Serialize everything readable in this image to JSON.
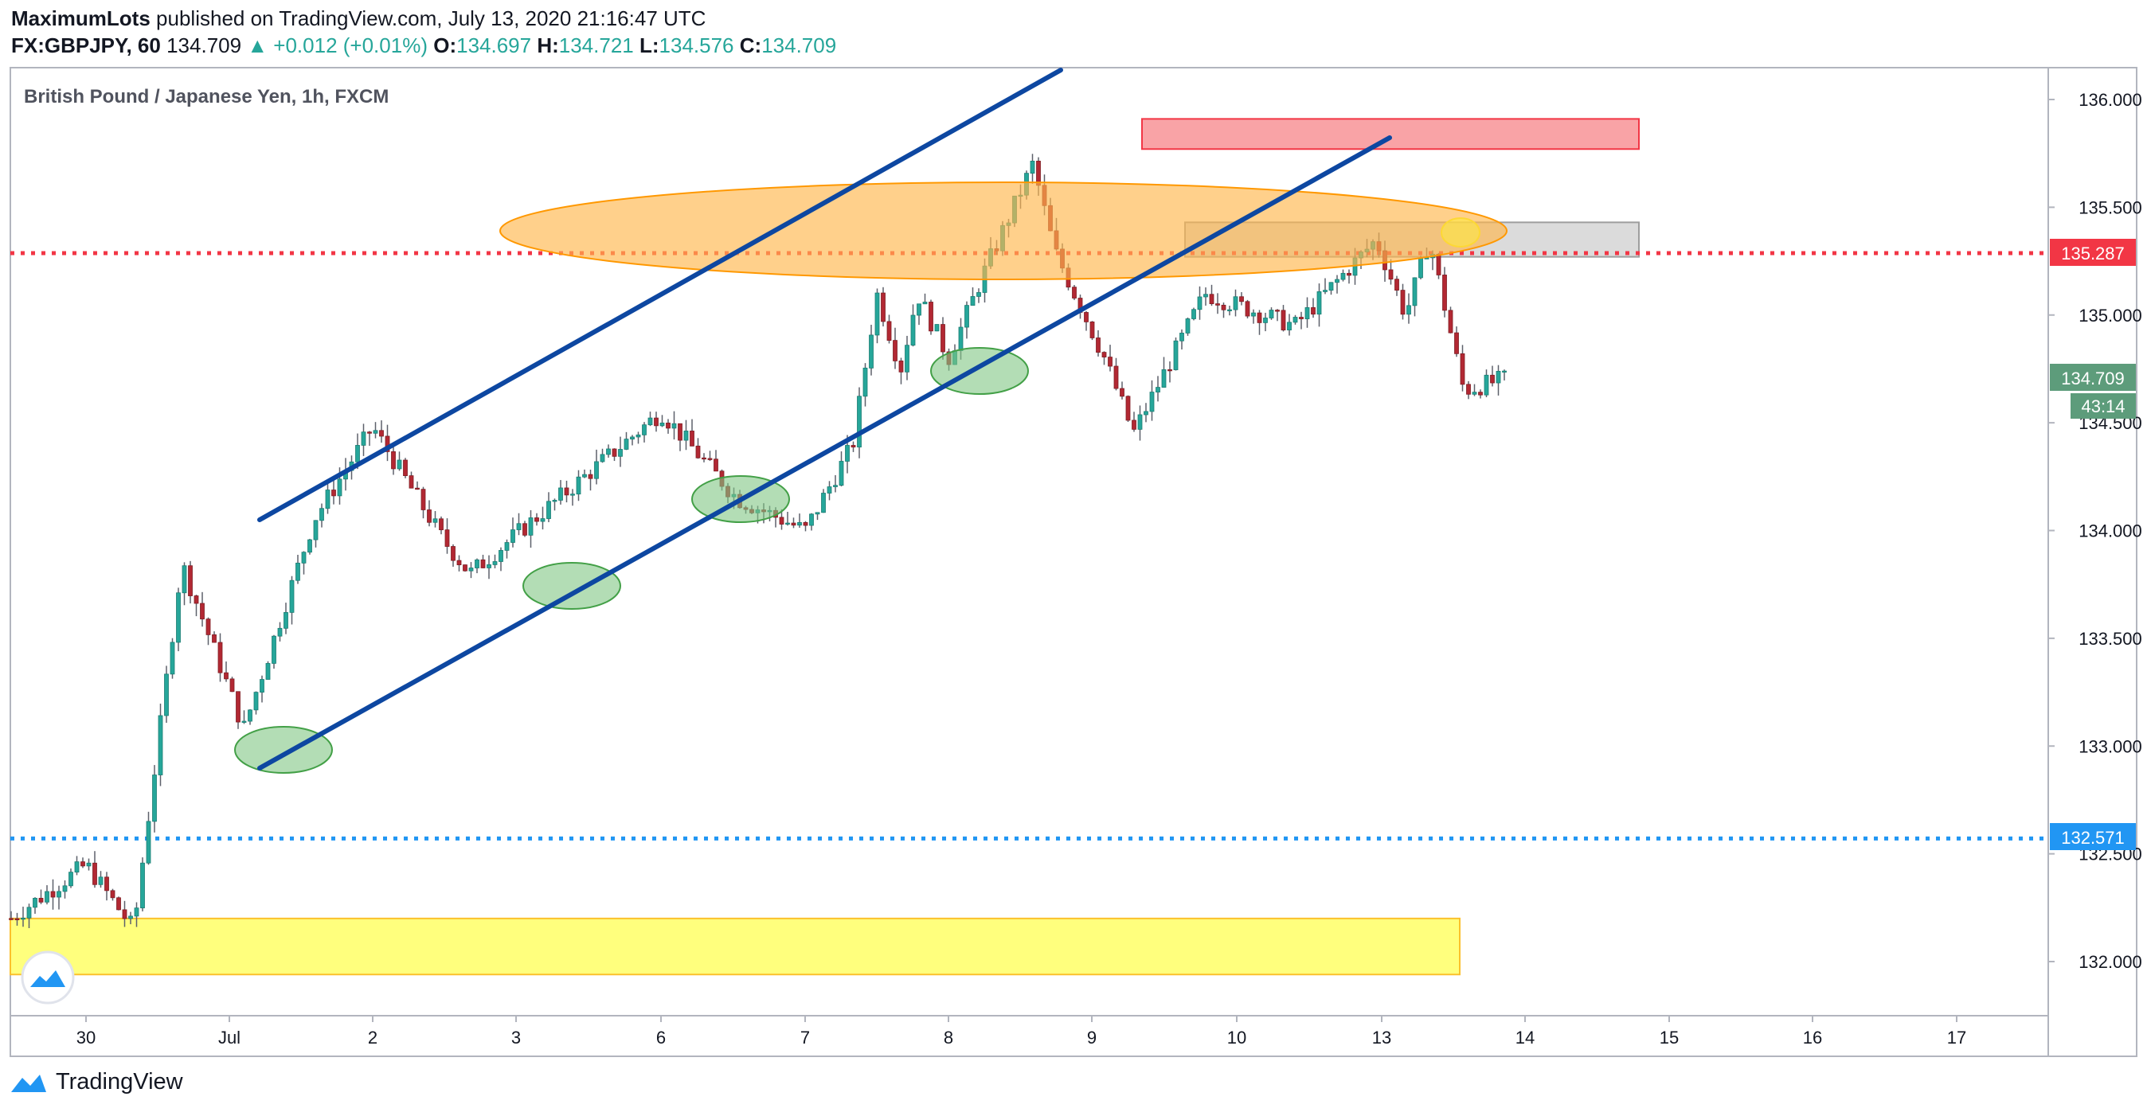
{
  "header": {
    "publisher": "MaximumLots",
    "published_text": "published on TradingView.com, July 13, 2020 21:16:47 UTC",
    "symbol": "FX:GBPJPY, 60",
    "last": "134.709",
    "change": "+0.012 (+0.01%)",
    "o_label": "O:",
    "o": "134.697",
    "h_label": "H:",
    "h": "134.721",
    "l_label": "L:",
    "l": "134.576",
    "c_label": "C:",
    "c": "134.709"
  },
  "footer": {
    "brand": "TradingView"
  },
  "colors": {
    "up": "#26a69a",
    "down": "#b22833",
    "wick": "#5d606b",
    "channel": "#0d47a1",
    "resistance_line": "#f23645",
    "support_line": "#2196f3",
    "supply_zone": "#f77c80",
    "demand_zone": "#ffff66",
    "ellipse": "#ffb74d",
    "touch": "#81c784"
  },
  "chart_data": {
    "type": "candlestick",
    "title": "British Pound / Japanese Yen, 1h, FXCM",
    "x_ticks": [
      "30",
      "Jul",
      "2",
      "3",
      "6",
      "7",
      "8",
      "9",
      "10",
      "13",
      "14",
      "15",
      "16",
      "17"
    ],
    "y_ticks": [
      "136.000",
      "135.500",
      "135.000",
      "134.500",
      "134.000",
      "133.500",
      "133.000",
      "132.500",
      "132.000"
    ],
    "ylim": [
      131.85,
      136.25
    ],
    "price_labels": {
      "resistance": "135.287",
      "last": "134.709",
      "countdown": "43:14",
      "support": "132.571"
    },
    "horizontal_levels": [
      135.287,
      132.571
    ],
    "zones": [
      {
        "name": "supply",
        "low": 135.77,
        "high": 135.91
      },
      {
        "name": "resistance-box",
        "low": 135.27,
        "high": 135.43
      },
      {
        "name": "demand",
        "low": 131.94,
        "high": 132.2
      }
    ],
    "anchors": [
      {
        "name": "Jun 29 14h",
        "price": 132.2
      },
      {
        "name": "Jun 30 06h",
        "price": 132.45
      },
      {
        "name": "Jun 30 16h",
        "price": 132.15
      },
      {
        "name": "Jul 1 02h",
        "price": 133.85
      },
      {
        "name": "Jul 1 08h",
        "price": 133.08
      },
      {
        "name": "Jul 1 20h",
        "price": 134.05
      },
      {
        "name": "Jul 2 20h",
        "price": 134.48
      },
      {
        "name": "Jul 3 08h",
        "price": 133.95
      },
      {
        "name": "Jul 3 14h",
        "price": 133.8
      },
      {
        "name": "Jul 6 06h",
        "price": 134.55
      },
      {
        "name": "Jul 6 20h",
        "price": 134.15
      },
      {
        "name": "Jul 7 10h",
        "price": 134.0
      },
      {
        "name": "Jul 7 20h",
        "price": 134.4
      },
      {
        "name": "Jul 8 02h",
        "price": 135.1
      },
      {
        "name": "Jul 8 08h",
        "price": 134.75
      },
      {
        "name": "Jul 8 12h",
        "price": 135.1
      },
      {
        "name": "Jul 8 18h",
        "price": 134.8
      },
      {
        "name": "Jul 9 02h",
        "price": 135.2
      },
      {
        "name": "Jul 9 12h",
        "price": 135.7
      },
      {
        "name": "Jul 9 18h",
        "price": 135.3
      },
      {
        "name": "Jul 10 04h",
        "price": 134.8
      },
      {
        "name": "Jul 10 10h",
        "price": 134.45
      },
      {
        "name": "Jul 10 20h",
        "price": 135.1
      },
      {
        "name": "Jul 13 04h",
        "price": 134.95
      },
      {
        "name": "Jul 13 10h",
        "price": 135.35
      },
      {
        "name": "Jul 13 14h",
        "price": 135.0
      },
      {
        "name": "Jul 13 18h",
        "price": 135.35
      },
      {
        "name": "Jul 13 22h",
        "price": 134.65
      },
      {
        "name": "Jul 14 00h",
        "price": 134.709
      }
    ]
  }
}
